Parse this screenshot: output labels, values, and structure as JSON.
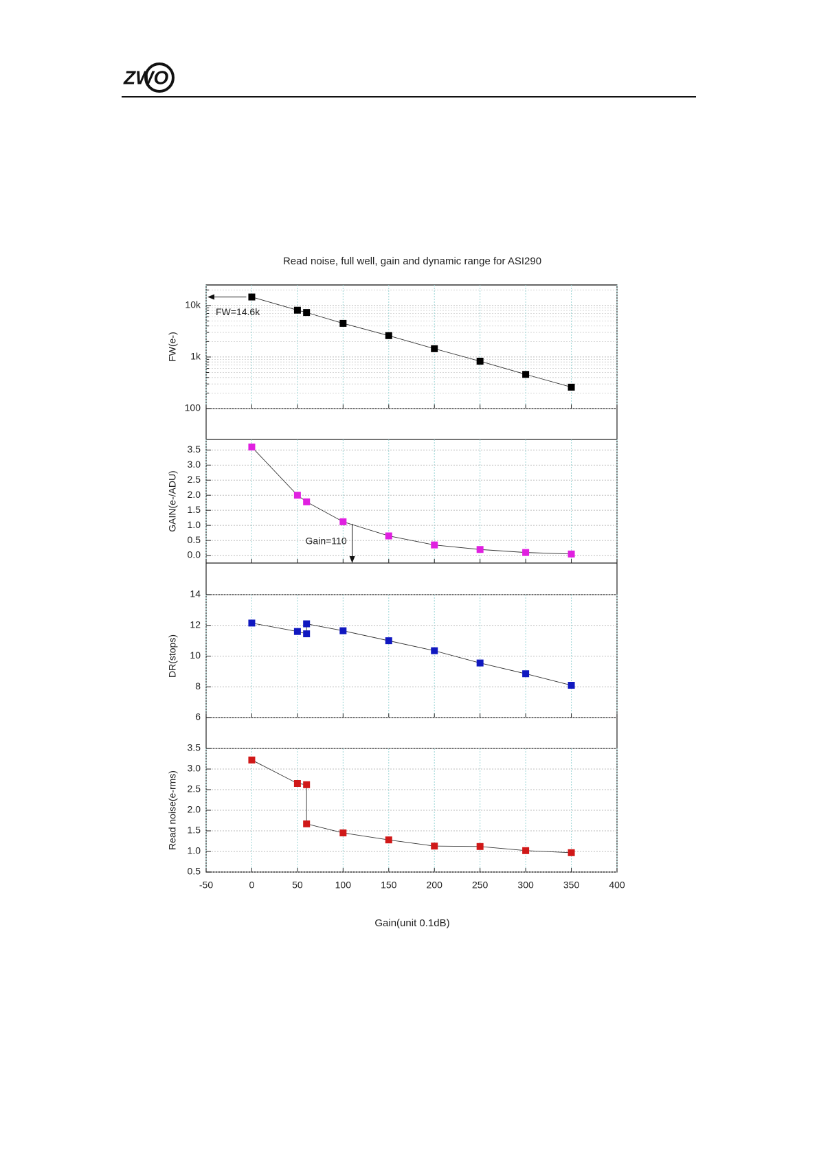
{
  "header": {
    "logo": "ZWO"
  },
  "chart_data": [
    {
      "type": "line",
      "title": "Read noise, full well, gain and dynamic range for ASI290",
      "y_label": "FW(e-)",
      "x": [
        0,
        50,
        60,
        100,
        150,
        200,
        250,
        300,
        350
      ],
      "values": [
        14600,
        8100,
        7300,
        4500,
        2600,
        1450,
        830,
        460,
        260
      ],
      "color": "#000000",
      "log_y": true,
      "minor_grid": true,
      "xlim": [
        -50,
        400
      ],
      "xticks": [
        -50,
        0,
        50,
        100,
        150,
        200,
        250,
        300,
        350,
        400
      ],
      "ylim": [
        100,
        25000
      ],
      "yticks": [
        100,
        {
          "value": 1000,
          "label": "1k"
        },
        {
          "value": 10000,
          "label": "10k"
        }
      ],
      "annotation": {
        "text": "FW=14.6k",
        "y": 14600
      },
      "grid": true
    },
    {
      "type": "line",
      "y_label": "GAIN(e-/ADU)",
      "x": [
        0,
        50,
        60,
        100,
        150,
        200,
        250,
        300,
        350
      ],
      "values": [
        3.6,
        2.0,
        1.78,
        1.12,
        0.65,
        0.35,
        0.2,
        0.1,
        0.05
      ],
      "color": "#e020e0",
      "xlim": [
        -50,
        400
      ],
      "xticks": [
        -50,
        0,
        50,
        100,
        150,
        200,
        250,
        300,
        350,
        400
      ],
      "ylim": [
        -0.25,
        3.85
      ],
      "yticks": [
        {
          "value": 0,
          "label": "0.0"
        },
        0.5,
        {
          "value": 1,
          "label": "1.0"
        },
        1.5,
        {
          "value": 2,
          "label": "2.0"
        },
        2.5,
        {
          "value": 3,
          "label": "3.0"
        },
        3.5
      ],
      "annotation": {
        "text": "Gain=110",
        "x": 110,
        "y": 1.05
      },
      "grid": true
    },
    {
      "type": "line",
      "y_label": "DR(stops)",
      "x": [
        0,
        50,
        60,
        60,
        100,
        150,
        200,
        250,
        300,
        350
      ],
      "values": [
        12.15,
        11.6,
        11.45,
        12.1,
        11.65,
        11.0,
        10.35,
        9.55,
        8.85,
        8.1
      ],
      "color": "#1018c0",
      "xlim": [
        -50,
        400
      ],
      "xticks": [
        -50,
        0,
        50,
        100,
        150,
        200,
        250,
        300,
        350,
        400
      ],
      "ylim": [
        6,
        14
      ],
      "yticks": [
        6,
        8,
        10,
        12,
        14
      ],
      "grid": true
    },
    {
      "type": "line",
      "y_label": "Read noise(e-rms)",
      "x_label": "Gain(unit 0.1dB)",
      "x": [
        0,
        50,
        60,
        60,
        100,
        150,
        200,
        250,
        300,
        350
      ],
      "values": [
        3.22,
        2.65,
        2.62,
        1.67,
        1.45,
        1.28,
        1.13,
        1.12,
        1.02,
        0.97
      ],
      "color": "#d01818",
      "xlim": [
        -50,
        400
      ],
      "xticks": [
        -50,
        0,
        50,
        100,
        150,
        200,
        250,
        300,
        350,
        400
      ],
      "ylim": [
        0.5,
        3.5
      ],
      "yticks": [
        0.5,
        {
          "value": 1,
          "label": "1.0"
        },
        1.5,
        {
          "value": 2,
          "label": "2.0"
        },
        2.5,
        {
          "value": 3,
          "label": "3.0"
        },
        3.5
      ],
      "grid": true
    }
  ]
}
